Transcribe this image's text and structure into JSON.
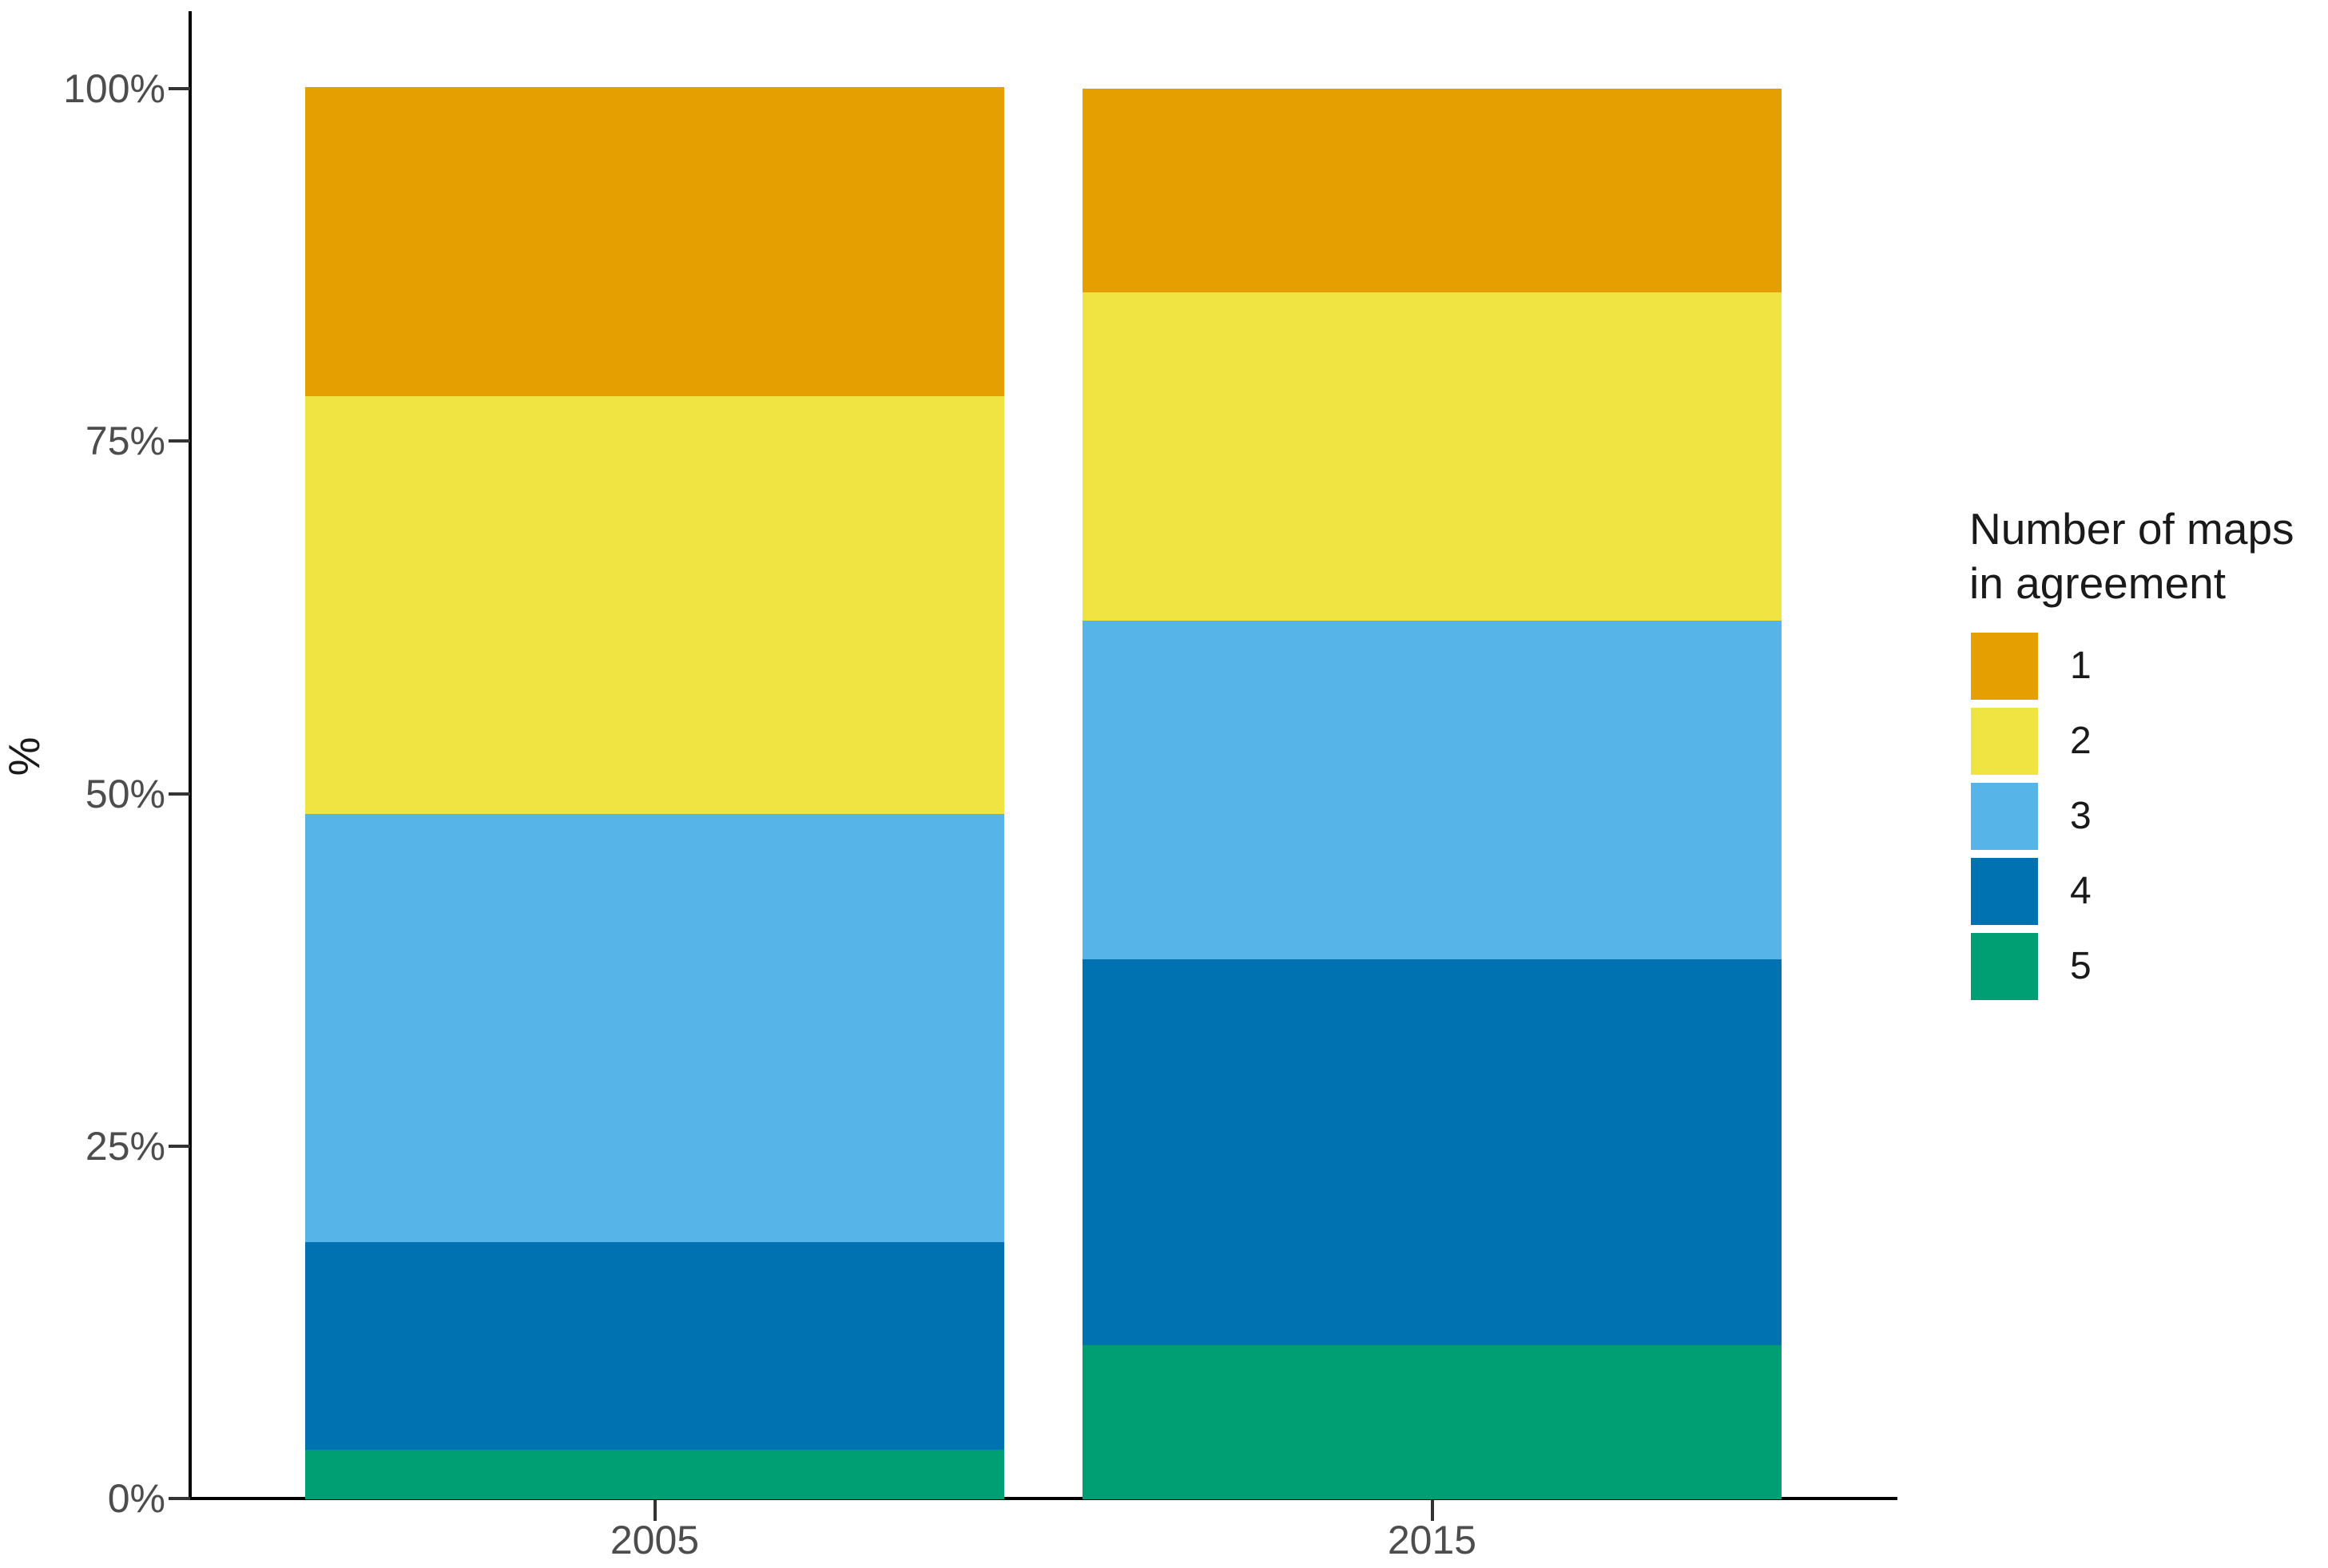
{
  "chart_data": {
    "type": "bar",
    "subtype": "stacked-percent",
    "title": "",
    "xlabel": "",
    "ylabel": "%",
    "categories": [
      "2005",
      "2015"
    ],
    "series": [
      {
        "name": "1",
        "color": "#E69F00",
        "values": [
          21.9,
          14.4
        ]
      },
      {
        "name": "2",
        "color": "#F0E442",
        "values": [
          29.6,
          23.3
        ]
      },
      {
        "name": "3",
        "color": "#56B4E9",
        "values": [
          30.4,
          24.0
        ]
      },
      {
        "name": "4",
        "color": "#0072B2",
        "values": [
          14.7,
          27.4
        ]
      },
      {
        "name": "5",
        "color": "#009E73",
        "values": [
          3.5,
          10.9
        ]
      }
    ],
    "stack_order_bottom_to_top": [
      "5",
      "4",
      "3",
      "2",
      "1"
    ],
    "ylim": [
      0,
      100
    ],
    "y_ticks": [
      {
        "value": 0,
        "label": "0%"
      },
      {
        "value": 25,
        "label": "25%"
      },
      {
        "value": 50,
        "label": "50%"
      },
      {
        "value": 75,
        "label": "75%"
      },
      {
        "value": 100,
        "label": "100%"
      }
    ],
    "grid": "off",
    "legend": {
      "position": "right",
      "title": "Number of maps in agreement",
      "title_lines": [
        "Number of maps",
        "in agreement"
      ],
      "entries": [
        "1",
        "2",
        "3",
        "4",
        "5"
      ]
    },
    "colors": {
      "axis_line": "#000000",
      "tick_mark": "#333333",
      "axis_text": "#4d4d4d",
      "legend_text": "#1a1a1a",
      "background": "#ffffff"
    }
  }
}
